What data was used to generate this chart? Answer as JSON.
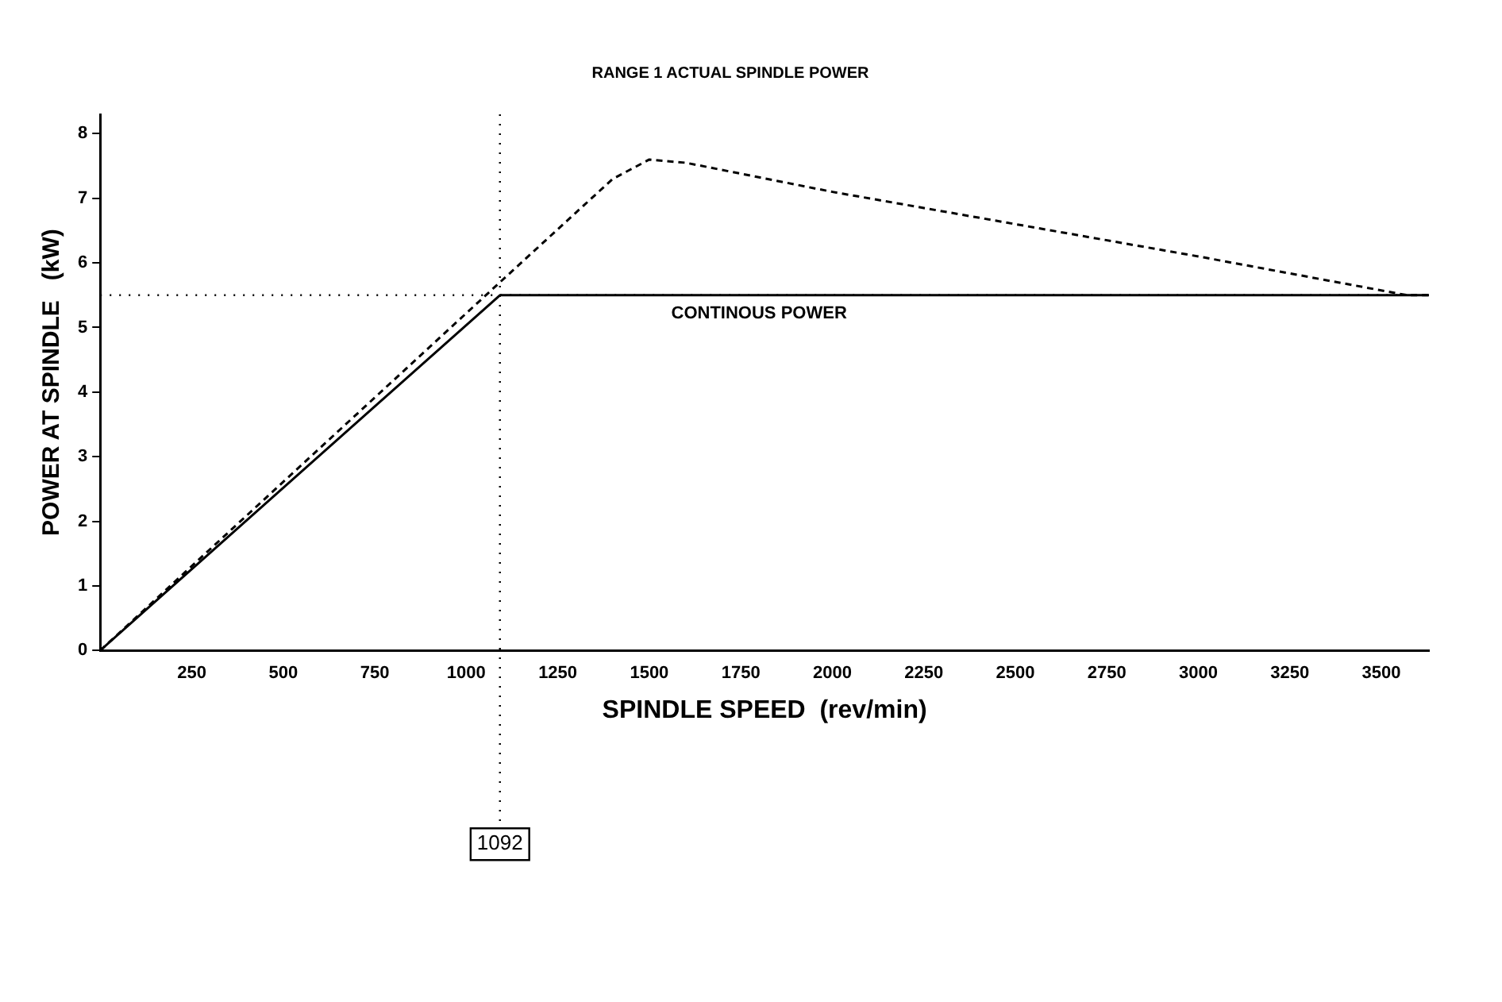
{
  "chart_data": {
    "type": "line",
    "title": "RANGE 1 ACTUAL SPINDLE POWER",
    "xlabel": "SPINDLE SPEED  (rev/min)",
    "ylabel": "POWER AT SPINDLE   (kW)",
    "xlim": [
      0,
      3630
    ],
    "xticks": [
      250,
      500,
      750,
      1000,
      1250,
      1500,
      1750,
      2000,
      2250,
      2500,
      2750,
      3000,
      3250,
      3500
    ],
    "ylim": [
      0,
      8.3
    ],
    "yticks": [
      0,
      1,
      2,
      3,
      4,
      5,
      6,
      7,
      8
    ],
    "grid": false,
    "legend": false,
    "marker": "none",
    "series": [
      {
        "color": "#000000",
        "line_style": "solid",
        "x": [
          0,
          1092,
          3630
        ],
        "values": [
          0,
          5.5,
          5.5
        ]
      },
      {
        "color": "#000000",
        "line_style": "dashed",
        "x": [
          0,
          1092,
          1400,
          1500,
          1600,
          2000,
          2500,
          3000,
          3570,
          3630
        ],
        "values": [
          0,
          5.7,
          7.3,
          7.6,
          7.55,
          7.1,
          6.6,
          6.1,
          5.5,
          5.5
        ]
      }
    ],
    "ref_lines": [
      {
        "axis": "y",
        "value": 5.5,
        "line_style": "dotted",
        "color": "#000000"
      },
      {
        "axis": "x",
        "value": 1092,
        "label": "1092",
        "line_style": "dotted",
        "color": "#000000"
      }
    ],
    "annotations": [
      {
        "text": "CONTINOUS POWER",
        "x": 1560,
        "y": 5.5
      }
    ]
  }
}
